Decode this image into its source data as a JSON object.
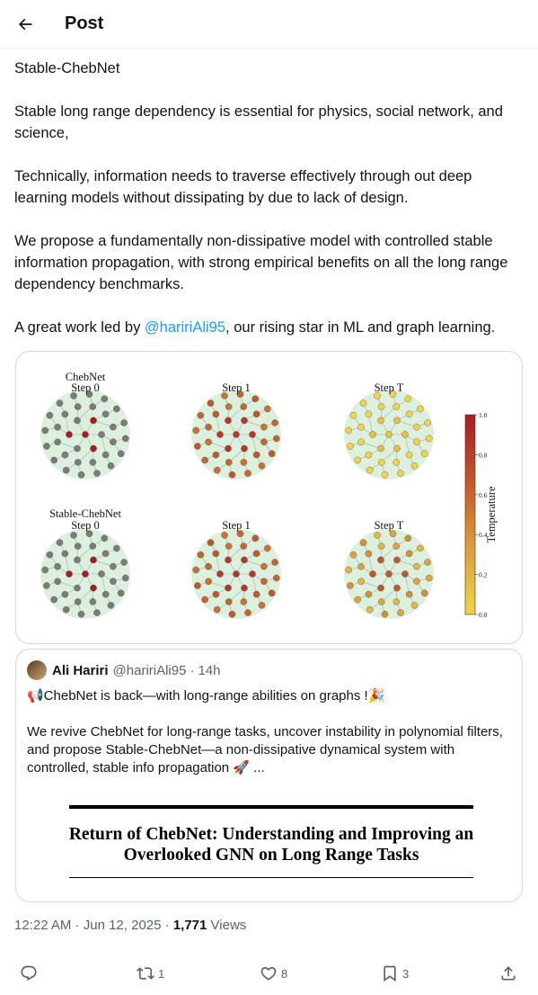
{
  "header": {
    "title": "Post"
  },
  "post": {
    "paragraphs": [
      "Stable-ChebNet",
      "Stable long range dependency is essential for physics, social network, and science,",
      "Technically, information needs to traverse effectively through out deep learning models without dissipating by due to lack of design.",
      "We propose a fundamentally non-dissipative model with controlled stable information propagation, with strong empirical benefits on all the long range dependency benchmarks."
    ],
    "last_before": "A great work led by ",
    "mention": "@haririAli95",
    "last_after": ", our rising star in ML and graph learning."
  },
  "figure": {
    "row_titles": [
      "ChebNet",
      "Stable-ChebNet"
    ],
    "top_step_labels": [
      "Step 0",
      "Step 1",
      "Step T"
    ],
    "bottom_step_labels": [
      "Step 0",
      "Step 1",
      "Step T"
    ],
    "colorbar_label": "Temperature",
    "colorbar_ticks": [
      "1.0",
      "0.8",
      "0.6",
      "0.4",
      "0.2",
      "0.0"
    ],
    "colors": {
      "hot": "#a61c22",
      "mid": "#c7742f",
      "cold": "#f2d34a",
      "gray": "#7b7b7b",
      "bg": "#d4ecd5"
    }
  },
  "quote": {
    "name": "Ali Hariri",
    "handle": "@haririAli95",
    "dot": "·",
    "time": "14h",
    "line1": "📢ChebNet is back—with long-range abilities on graphs !🎉",
    "line2": "We revive ChebNet for long-range tasks, uncover instability in polynomial filters, and propose Stable-ChebNet—a non-dissipative dynamical system with controlled, stable info propagation 🚀 ...",
    "paper_title": "Return of ChebNet: Understanding and Improving an Overlooked GNN on Long Range Tasks"
  },
  "meta": {
    "time": "12:22 AM",
    "sep1": " · ",
    "date": "Jun 12, 2025",
    "sep2": " · ",
    "views_count": "1,771",
    "views_label": " Views"
  },
  "actions": {
    "reply_icon": "reply-icon",
    "retweet_icon": "retweet-icon",
    "retweet_count": "1",
    "like_icon": "heart-icon",
    "like_count": "8",
    "bookmark_icon": "bookmark-icon",
    "bookmark_count": "3",
    "share_icon": "share-icon"
  }
}
